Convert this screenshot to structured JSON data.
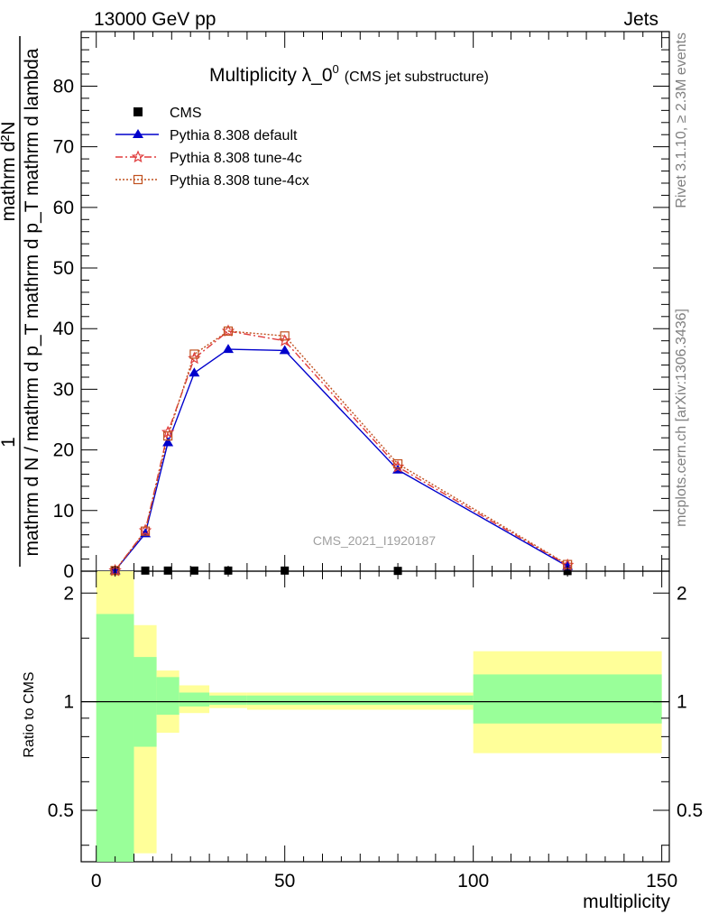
{
  "header": {
    "left": "13000 GeV pp",
    "right": "Jets"
  },
  "plot_title": "Multiplicity λ_0",
  "plot_title_sup": "0",
  "plot_subtitle": "(CMS jet substructure)",
  "ylabel_one": "1",
  "ylabel_numer": "mathrm d²N",
  "ylabel_denom": "mathrm d N / mathrm d p_T mathrm d p_T mathrm d lambda",
  "xlabel": "multiplicity",
  "ratio_label": "Ratio to CMS",
  "watermark": "CMS_2021_I1920187",
  "side_text_top": "Rivet 3.1.10, ≥ 2.3M events",
  "side_text_bottom": "mcplots.cern.ch [arXiv:1306.3436]",
  "legend": [
    {
      "label": "CMS",
      "marker": "square",
      "color": "#000000"
    },
    {
      "label": "Pythia 8.308 default",
      "marker": "triangle",
      "color": "#0000cc"
    },
    {
      "label": "Pythia 8.308 tune-4c",
      "marker": "star",
      "color": "#e03c3c"
    },
    {
      "label": "Pythia 8.308 tune-4cx",
      "marker": "open-square",
      "color": "#c0501e"
    }
  ],
  "chart_data": [
    {
      "type": "line",
      "title": "Multiplicity λ_0^0 (CMS jet substructure)",
      "xlabel": "multiplicity",
      "ylabel": "1 / (mathrm d N / mathrm d p_T) · mathrm d²N / (mathrm d p_T mathrm d lambda)",
      "xlim": [
        -4,
        152
      ],
      "ylim": [
        0,
        89
      ],
      "xticks": [
        0,
        50,
        100,
        150
      ],
      "yticks": [
        0,
        10,
        20,
        30,
        40,
        50,
        60,
        70,
        80
      ],
      "grid": false,
      "legend_position": "top-left",
      "series": [
        {
          "name": "CMS",
          "style": "markers",
          "color": "#000000",
          "x": [
            5,
            13,
            19,
            26,
            35,
            50,
            80,
            125
          ],
          "y": [
            0.05,
            0.1,
            0.1,
            0.1,
            0.1,
            0.1,
            0.05,
            0.02
          ]
        },
        {
          "name": "Pythia 8.308 default",
          "style": "solid",
          "color": "#0000cc",
          "x": [
            5,
            13,
            19,
            26,
            35,
            50,
            80,
            125
          ],
          "y": [
            0.1,
            6.2,
            21.2,
            32.7,
            36.6,
            36.4,
            16.7,
            0.8
          ]
        },
        {
          "name": "Pythia 8.308 tune-4c",
          "style": "dashdot",
          "color": "#e03c3c",
          "x": [
            5,
            13,
            19,
            26,
            35,
            50,
            80,
            125
          ],
          "y": [
            0.1,
            6.7,
            22.9,
            35.1,
            39.6,
            38.0,
            17.2,
            1.0
          ]
        },
        {
          "name": "Pythia 8.308 tune-4cx",
          "style": "dotted",
          "color": "#c0501e",
          "x": [
            5,
            13,
            19,
            26,
            35,
            50,
            80,
            125
          ],
          "y": [
            0.1,
            6.6,
            22.3,
            35.8,
            39.6,
            38.8,
            17.7,
            1.1
          ]
        }
      ]
    },
    {
      "type": "area",
      "title": "",
      "xlabel": "multiplicity",
      "ylabel": "Ratio to CMS",
      "xlim": [
        -4,
        152
      ],
      "ylim": [
        0.36,
        2.3
      ],
      "yscale": "log",
      "yticks": [
        0.5,
        1,
        2
      ],
      "xticks": [
        0,
        50,
        100,
        150
      ],
      "reference_line": 1,
      "bins": [
        {
          "x_low": 0,
          "x_high": 10,
          "inner": [
            0.36,
            1.75
          ],
          "outer": [
            0.36,
            2.3
          ]
        },
        {
          "x_low": 10,
          "x_high": 16,
          "inner": [
            0.75,
            1.33
          ],
          "outer": [
            0.38,
            1.63
          ]
        },
        {
          "x_low": 16,
          "x_high": 22,
          "inner": [
            0.92,
            1.17
          ],
          "outer": [
            0.82,
            1.22
          ]
        },
        {
          "x_low": 22,
          "x_high": 30,
          "inner": [
            0.97,
            1.06
          ],
          "outer": [
            0.93,
            1.11
          ]
        },
        {
          "x_low": 30,
          "x_high": 40,
          "inner": [
            0.98,
            1.04
          ],
          "outer": [
            0.96,
            1.06
          ]
        },
        {
          "x_low": 40,
          "x_high": 60,
          "inner": [
            0.98,
            1.04
          ],
          "outer": [
            0.95,
            1.06
          ]
        },
        {
          "x_low": 60,
          "x_high": 100,
          "inner": [
            0.98,
            1.04
          ],
          "outer": [
            0.95,
            1.06
          ]
        },
        {
          "x_low": 100,
          "x_high": 150,
          "inner": [
            0.87,
            1.19
          ],
          "outer": [
            0.72,
            1.38
          ]
        }
      ],
      "colors": {
        "inner": "#99ff99",
        "outer": "#ffff99"
      }
    }
  ]
}
